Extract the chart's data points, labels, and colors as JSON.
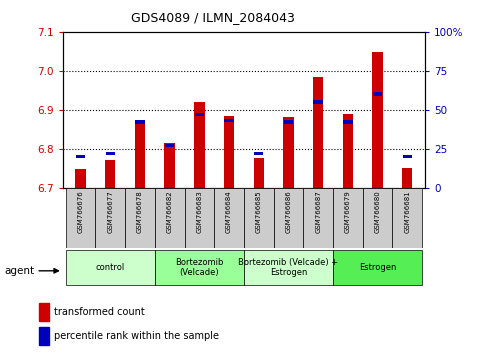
{
  "title": "GDS4089 / ILMN_2084043",
  "samples": [
    "GSM766676",
    "GSM766677",
    "GSM766678",
    "GSM766682",
    "GSM766683",
    "GSM766684",
    "GSM766685",
    "GSM766686",
    "GSM766687",
    "GSM766679",
    "GSM766680",
    "GSM766681"
  ],
  "red_values": [
    6.748,
    6.77,
    6.872,
    6.815,
    6.92,
    6.883,
    6.777,
    6.882,
    6.984,
    6.888,
    7.048,
    6.75
  ],
  "blue_values_pct": [
    20,
    22,
    42,
    27,
    47,
    43,
    22,
    42,
    55,
    42,
    60,
    20
  ],
  "ylim_left": [
    6.7,
    7.1
  ],
  "ylim_right": [
    0,
    100
  ],
  "yticks_left": [
    6.7,
    6.8,
    6.9,
    7.0,
    7.1
  ],
  "yticks_right": [
    0,
    25,
    50,
    75,
    100
  ],
  "ytick_labels_right": [
    "0",
    "25",
    "50",
    "75",
    "100%"
  ],
  "groups": [
    {
      "label": "control",
      "start": 0,
      "end": 3,
      "color": "#ccffcc"
    },
    {
      "label": "Bortezomib\n(Velcade)",
      "start": 3,
      "end": 6,
      "color": "#99ff99"
    },
    {
      "label": "Bortezomib (Velcade) +\nEstrogen",
      "start": 6,
      "end": 9,
      "color": "#ccffcc"
    },
    {
      "label": "Estrogen",
      "start": 9,
      "end": 12,
      "color": "#55ee55"
    }
  ],
  "bar_bottom": 6.7,
  "red_color": "#cc0000",
  "blue_color": "#0000bb",
  "bar_width": 0.35,
  "agent_label": "agent",
  "legend_red": "transformed count",
  "legend_blue": "percentile rank within the sample",
  "tick_color_left": "#cc0000",
  "tick_color_right": "#0000bb",
  "xticklabel_bg": "#cccccc"
}
